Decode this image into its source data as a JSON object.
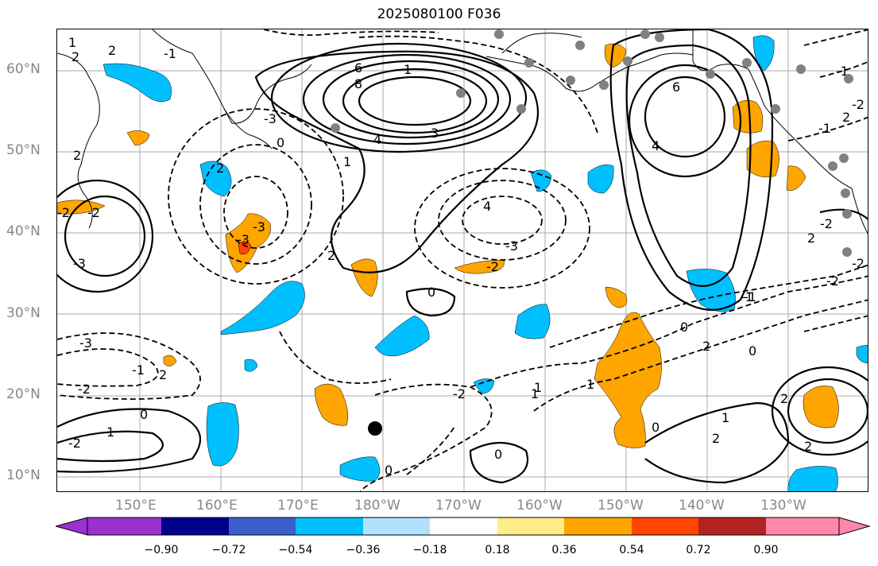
{
  "title": "2025080100 F036",
  "lat_labels": [
    "60°N",
    "50°N",
    "40°N",
    "30°N",
    "20°N",
    "10°N"
  ],
  "lon_labels": [
    "150°E",
    "160°E",
    "170°E",
    "180°W",
    "170°W",
    "160°W",
    "150°W",
    "140°W",
    "130°W"
  ],
  "colorbar": {
    "ticks": [
      "−0.90",
      "−0.72",
      "−0.54",
      "−0.36",
      "−0.18",
      "0.18",
      "0.36",
      "0.54",
      "0.72",
      "0.90"
    ],
    "colors": [
      "#9932cc",
      "#00008b",
      "#3a5fcd",
      "#00bfff",
      "#b0e2ff",
      "#ffffff",
      "#ffec8b",
      "#ffa500",
      "#ff4500",
      "#b22222",
      "#ff88aa"
    ]
  },
  "contour_labels": [
    "6",
    "8",
    "4",
    "3",
    "-3",
    "1",
    "0",
    "-3",
    "2",
    "-2",
    "4",
    "-2",
    "2",
    "-3",
    "2",
    "-3",
    "-3",
    "0",
    "-1",
    "-2",
    "1",
    "0",
    "6",
    "4",
    "-2",
    "1",
    "-2",
    "-1",
    "2",
    "-1",
    "-1",
    "2",
    "1",
    "0",
    "2",
    "0",
    "1",
    "0",
    "0",
    "2",
    "2",
    "-2",
    "-1",
    "-3",
    "2",
    "1",
    "-2",
    "1",
    "-2",
    "2",
    "0",
    "-2",
    "1",
    "2",
    "2",
    "-1",
    "-2"
  ]
}
